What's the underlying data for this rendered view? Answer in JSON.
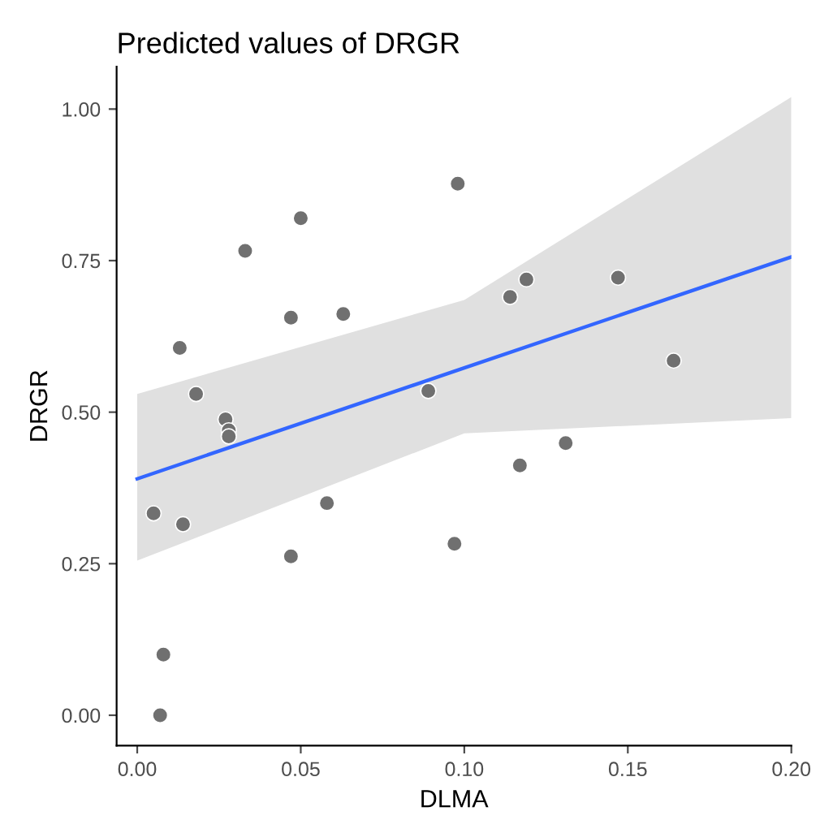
{
  "chart_data": {
    "type": "scatter",
    "title": "Predicted values of DRGR",
    "xlabel": "DLMA",
    "ylabel": "DRGR",
    "xlim": [
      -0.0063,
      0.2
    ],
    "ylim": [
      -0.05,
      1.07
    ],
    "xticks": [
      {
        "value": 0,
        "label": "0.00"
      },
      0.05,
      {
        "value": 0.1,
        "label": "0.10"
      },
      0.15,
      {
        "value": 0.2,
        "label": "0.20"
      }
    ],
    "yticks": [
      {
        "value": 0,
        "label": "0.00"
      },
      0.25,
      {
        "value": 0.5,
        "label": "0.50"
      },
      0.75,
      {
        "value": 1,
        "label": "1.00"
      }
    ],
    "grid": false,
    "legend": false,
    "series": [
      {
        "color": "#707070",
        "marker": "circle",
        "x": [
          0.005,
          0.007,
          0.008,
          0.013,
          0.014,
          0.018,
          0.027,
          0.028,
          0.028,
          0.033,
          0.047,
          0.047,
          0.05,
          0.058,
          0.063,
          0.089,
          0.097,
          0.098,
          0.114,
          0.117,
          0.119,
          0.131,
          0.147,
          0.164
        ],
        "values": [
          0.333,
          0.0,
          0.1,
          0.606,
          0.315,
          0.53,
          0.488,
          0.47,
          0.46,
          0.766,
          0.656,
          0.262,
          0.82,
          0.35,
          0.662,
          0.535,
          0.283,
          0.877,
          0.69,
          0.412,
          0.719,
          0.449,
          0.722,
          0.585
        ]
      },
      {
        "type": "line",
        "color": "#3366ff",
        "line_style": "solid",
        "marker": "none",
        "x": [
          0,
          0.1,
          0.2
        ],
        "values": [
          0.39,
          0.573,
          0.756
        ],
        "lower": [
          0.255,
          0.465,
          0.49
        ],
        "upper": [
          0.53,
          0.685,
          1.02
        ]
      }
    ]
  }
}
